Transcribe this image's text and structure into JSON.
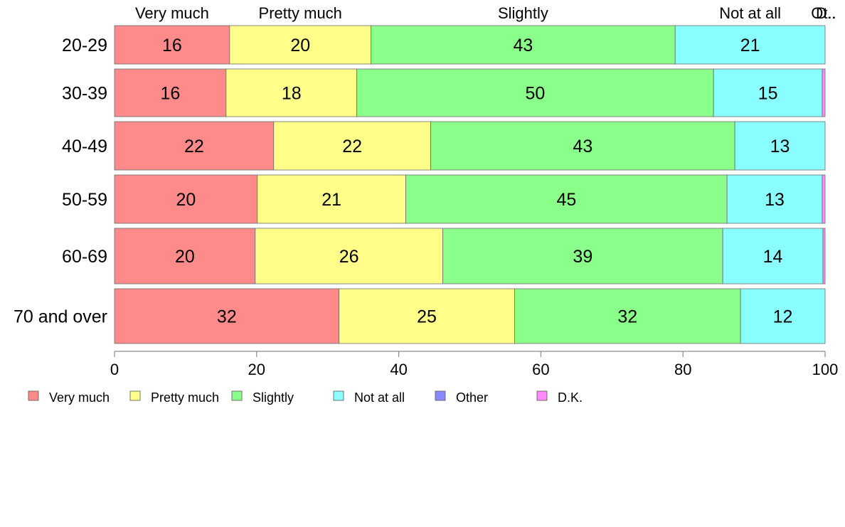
{
  "chart_data": {
    "type": "bar",
    "orientation": "horizontal",
    "stacked": true,
    "categories": [
      "20-29",
      "30-39",
      "40-49",
      "50-59",
      "60-69",
      "70 and over"
    ],
    "series": [
      {
        "name": "Very much",
        "color": "#FF8A8A",
        "values": [
          16.2,
          15.7,
          22.4,
          20.1,
          19.8,
          31.6
        ]
      },
      {
        "name": "Pretty much",
        "color": "#FFFF8A",
        "values": [
          19.9,
          18.4,
          22.1,
          20.9,
          26.4,
          24.7
        ]
      },
      {
        "name": "Slightly",
        "color": "#8AFF8A",
        "values": [
          42.8,
          50.2,
          42.8,
          45.2,
          39.4,
          31.8
        ]
      },
      {
        "name": "Not at all",
        "color": "#8AFFFF",
        "values": [
          21.1,
          15.3,
          12.7,
          13.4,
          14.1,
          11.9
        ]
      },
      {
        "name": "Other",
        "color": "#8A8AFF",
        "values": [
          0.0,
          0.0,
          0.0,
          0.0,
          0.0,
          0.0
        ]
      },
      {
        "name": "D.K.",
        "color": "#FF8AFF",
        "values": [
          0.0,
          0.4,
          0.0,
          0.4,
          0.3,
          0.0
        ]
      }
    ],
    "data_labels": [
      [
        "16",
        "20",
        "43",
        "21",
        "",
        ""
      ],
      [
        "16",
        "18",
        "50",
        "15",
        "",
        ""
      ],
      [
        "22",
        "22",
        "43",
        "13",
        "",
        ""
      ],
      [
        "20",
        "21",
        "45",
        "13",
        "",
        ""
      ],
      [
        "20",
        "26",
        "39",
        "14",
        "",
        ""
      ],
      [
        "32",
        "25",
        "32",
        "12",
        "",
        ""
      ]
    ],
    "top_labels": [
      "Very much",
      "Pretty much",
      "Slightly",
      "Not at all",
      "Ot..",
      "D.."
    ],
    "xlim": [
      0,
      100
    ],
    "xticks": [
      0,
      20,
      40,
      60,
      80,
      100
    ],
    "title": "",
    "xlabel": "",
    "ylabel": "",
    "grid": false,
    "legend_position": "bottom"
  }
}
